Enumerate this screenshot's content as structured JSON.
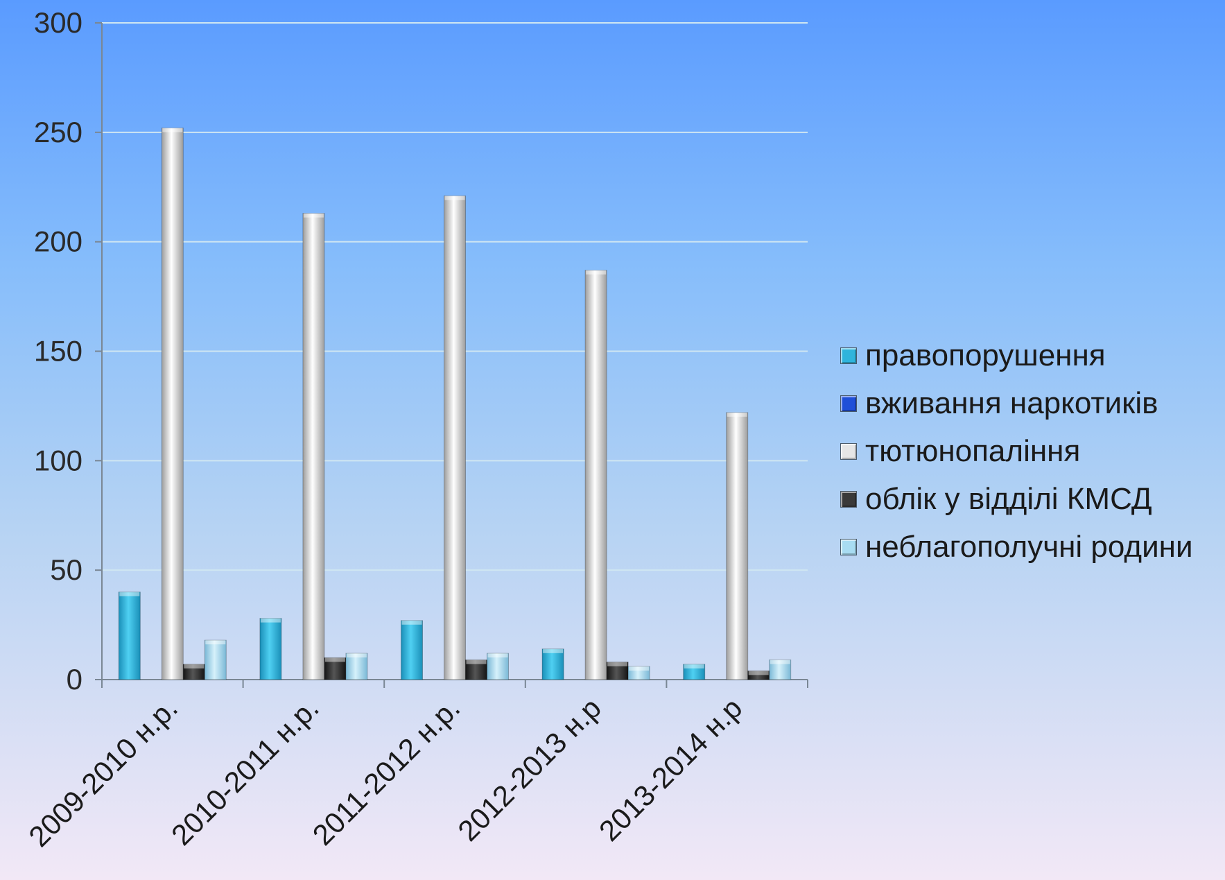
{
  "chart_data": {
    "type": "bar",
    "title": "",
    "xlabel": "",
    "ylabel": "",
    "ylim": [
      0,
      300
    ],
    "yticks": [
      0,
      50,
      100,
      150,
      200,
      250,
      300
    ],
    "grid": true,
    "legend_position": "right",
    "categories": [
      "2009-2010 н.р.",
      "2010-2011 н.р.",
      "2011-2012 н.р.",
      "2012-2013 н.р",
      "2013-2014 н.р"
    ],
    "series": [
      {
        "name": "правопорушення",
        "color": "#2fb4dc",
        "values": [
          40,
          28,
          27,
          14,
          7
        ]
      },
      {
        "name": "вживання наркотиків",
        "color": "#1f4fd8",
        "values": [
          0,
          0,
          0,
          0,
          0
        ]
      },
      {
        "name": "тютюнопаління",
        "color": "#e6e6e6",
        "values": [
          252,
          213,
          221,
          187,
          122
        ]
      },
      {
        "name": "облік у відділі КМСД",
        "color": "#3a3a3a",
        "values": [
          7,
          10,
          9,
          8,
          4
        ]
      },
      {
        "name": "неблагополучні родини",
        "color": "#a8dcf2",
        "values": [
          18,
          12,
          12,
          6,
          9
        ]
      }
    ]
  }
}
